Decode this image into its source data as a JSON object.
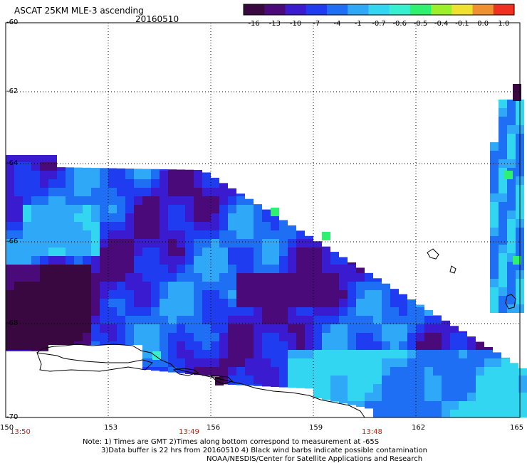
{
  "header": {
    "title": "ASCAT 25KM MLE-3 ascending",
    "date": "20160510"
  },
  "colorbar": {
    "labels": [
      "-16",
      "-13",
      "-10",
      "-7",
      "-4",
      "-1",
      "-0.7",
      "-0.6",
      "-0.5",
      "-0.4",
      "-0.1",
      "0.0",
      "1.0"
    ],
    "colors": [
      "#3a0840",
      "#4a0a7a",
      "#3b1bd0",
      "#1f3cf0",
      "#1f6ff5",
      "#2fa8f7",
      "#33d6f0",
      "#36f0d0",
      "#30f070",
      "#9cf02a",
      "#f0e030",
      "#f09030",
      "#f03020"
    ]
  },
  "axes": {
    "lat_labels": [
      "-60",
      "-62",
      "-64",
      "-66",
      "-68",
      "-70"
    ],
    "lon_labels": [
      "150",
      "153",
      "156",
      "159",
      "162",
      "165"
    ],
    "time_labels": [
      "13:50",
      "13:49",
      "13:48"
    ]
  },
  "notes": {
    "line1": "Note: 1) Times are GMT 2)Times along bottom correspond to measurement at -65S",
    "line2": "3)Data buffer is 22 hrs from 20160510 4) Black wind barbs indicate possible contamination",
    "line3": "NOAA/NESDIS/Center for Satellite Applications and Research"
  }
}
